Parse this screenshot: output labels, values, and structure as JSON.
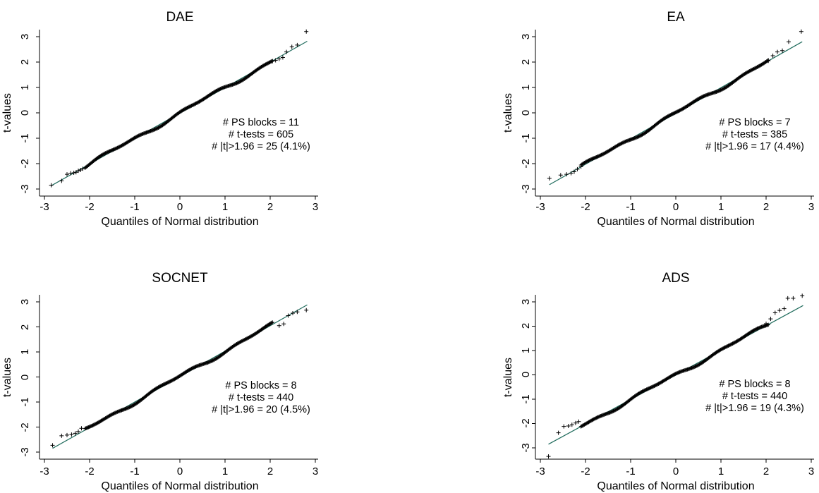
{
  "chart_data": [
    {
      "type": "scatter",
      "title": "DAE",
      "xlabel": "Quantiles of Normal distribution",
      "ylabel": "t-values",
      "xlim": [
        -3,
        3
      ],
      "ylim": [
        -3,
        3
      ],
      "xticks": [
        "-3",
        "-2",
        "-1",
        "0",
        "1",
        "2",
        "3"
      ],
      "yticks": [
        "-3",
        "-2",
        "-1",
        "0",
        "1",
        "2",
        "3"
      ],
      "grid": false,
      "reference_line": {
        "x": [
          -2.85,
          2.82
        ],
        "y": [
          -2.87,
          2.82
        ]
      },
      "annotations": [
        "# PS blocks = 11",
        "# t-tests = 605",
        "# |t|>1.96 = 25 (4.1%)"
      ],
      "outliers": [
        {
          "x": -2.85,
          "y": -2.85
        },
        {
          "x": -2.62,
          "y": -2.68
        },
        {
          "x": -2.5,
          "y": -2.42
        },
        {
          "x": -2.42,
          "y": -2.38
        },
        {
          "x": -2.35,
          "y": -2.36
        },
        {
          "x": -2.3,
          "y": -2.34
        },
        {
          "x": -2.25,
          "y": -2.28
        },
        {
          "x": -2.2,
          "y": -2.25
        },
        {
          "x": -2.15,
          "y": -2.2
        },
        {
          "x": 2.05,
          "y": 2.03
        },
        {
          "x": 2.12,
          "y": 2.07
        },
        {
          "x": 2.2,
          "y": 2.12
        },
        {
          "x": 2.28,
          "y": 2.18
        },
        {
          "x": 2.36,
          "y": 2.4
        },
        {
          "x": 2.48,
          "y": 2.6
        },
        {
          "x": 2.6,
          "y": 2.67
        },
        {
          "x": 2.8,
          "y": 3.2
        }
      ]
    },
    {
      "type": "scatter",
      "title": "EA",
      "xlabel": "Quantiles of Normal distribution",
      "ylabel": "t-values",
      "xlim": [
        -3,
        3
      ],
      "ylim": [
        -3,
        3
      ],
      "xticks": [
        "-3",
        "-2",
        "-1",
        "0",
        "1",
        "2",
        "3"
      ],
      "yticks": [
        "-3",
        "-2",
        "-1",
        "0",
        "1",
        "2",
        "3"
      ],
      "grid": false,
      "reference_line": {
        "x": [
          -2.8,
          2.8
        ],
        "y": [
          -2.83,
          2.8
        ]
      },
      "annotations": [
        "# PS blocks = 7",
        "# t-tests = 385",
        "# |t|>1.96 = 17 (4.4%)"
      ],
      "outliers": [
        {
          "x": -2.8,
          "y": -2.58
        },
        {
          "x": -2.55,
          "y": -2.45
        },
        {
          "x": -2.42,
          "y": -2.42
        },
        {
          "x": -2.32,
          "y": -2.38
        },
        {
          "x": -2.25,
          "y": -2.32
        },
        {
          "x": -2.18,
          "y": -2.22
        },
        {
          "x": -2.1,
          "y": -2.12
        },
        {
          "x": 2.05,
          "y": 2.05
        },
        {
          "x": 2.15,
          "y": 2.25
        },
        {
          "x": 2.25,
          "y": 2.4
        },
        {
          "x": 2.36,
          "y": 2.45
        },
        {
          "x": 2.5,
          "y": 2.8
        },
        {
          "x": 2.78,
          "y": 3.2
        }
      ]
    },
    {
      "type": "scatter",
      "title": "SOCNET",
      "xlabel": "Quantiles of Normal distribution",
      "ylabel": "t-values",
      "xlim": [
        -3,
        3
      ],
      "ylim": [
        -3,
        3
      ],
      "xticks": [
        "-3",
        "-2",
        "-1",
        "0",
        "1",
        "2",
        "3"
      ],
      "yticks": [
        "-3",
        "-2",
        "-1",
        "0",
        "1",
        "2",
        "3"
      ],
      "grid": false,
      "reference_line": {
        "x": [
          -2.82,
          2.82
        ],
        "y": [
          -2.85,
          2.88
        ]
      },
      "annotations": [
        "# PS blocks = 8",
        "# t-tests = 440",
        "# |t|>1.96 = 20 (4.5%)"
      ],
      "outliers": [
        {
          "x": -2.82,
          "y": -2.73
        },
        {
          "x": -2.62,
          "y": -2.35
        },
        {
          "x": -2.5,
          "y": -2.32
        },
        {
          "x": -2.4,
          "y": -2.3
        },
        {
          "x": -2.32,
          "y": -2.25
        },
        {
          "x": -2.25,
          "y": -2.18
        },
        {
          "x": -2.18,
          "y": -2.05
        },
        {
          "x": 2.2,
          "y": 2.05
        },
        {
          "x": 2.3,
          "y": 2.12
        },
        {
          "x": 2.4,
          "y": 2.45
        },
        {
          "x": 2.5,
          "y": 2.55
        },
        {
          "x": 2.6,
          "y": 2.6
        },
        {
          "x": 2.8,
          "y": 2.67
        }
      ]
    },
    {
      "type": "scatter",
      "title": "ADS",
      "xlabel": "Quantiles of Normal distribution",
      "ylabel": "t-values",
      "xlim": [
        -3,
        3
      ],
      "ylim": [
        -3,
        3
      ],
      "xticks": [
        "-3",
        "-2",
        "-1",
        "0",
        "1",
        "2",
        "3"
      ],
      "yticks": [
        "-3",
        "-2",
        "-1",
        "0",
        "1",
        "2",
        "3"
      ],
      "grid": false,
      "reference_line": {
        "x": [
          -2.82,
          2.82
        ],
        "y": [
          -2.85,
          2.85
        ]
      },
      "annotations": [
        "# PS blocks = 8",
        "# t-tests = 440",
        "# |t|>1.96 = 19 (4.3%)"
      ],
      "outliers": [
        {
          "x": -2.82,
          "y": -3.35
        },
        {
          "x": -2.6,
          "y": -2.38
        },
        {
          "x": -2.48,
          "y": -2.12
        },
        {
          "x": -2.38,
          "y": -2.1
        },
        {
          "x": -2.3,
          "y": -2.05
        },
        {
          "x": -2.22,
          "y": -1.98
        },
        {
          "x": -2.15,
          "y": -1.92
        },
        {
          "x": 2.0,
          "y": 2.1
        },
        {
          "x": 2.1,
          "y": 2.3
        },
        {
          "x": 2.2,
          "y": 2.55
        },
        {
          "x": 2.3,
          "y": 2.65
        },
        {
          "x": 2.4,
          "y": 2.72
        },
        {
          "x": 2.48,
          "y": 3.15
        },
        {
          "x": 2.6,
          "y": 3.15
        },
        {
          "x": 2.8,
          "y": 3.25
        }
      ]
    }
  ]
}
